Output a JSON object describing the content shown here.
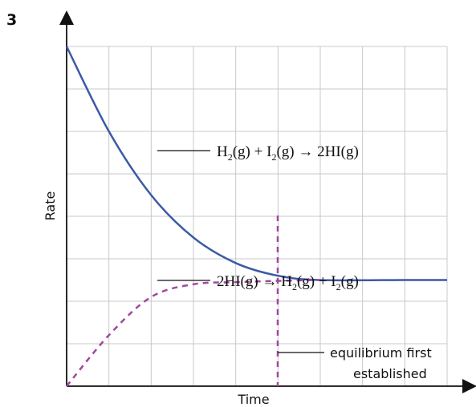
{
  "question_number": "3",
  "chart_data": {
    "type": "line",
    "xlabel": "Time",
    "ylabel": "Rate",
    "grid": true,
    "annotations": {
      "forward_reaction": "H2(g) + I2(g) → 2HI(g)",
      "reverse_reaction": "2HI(g) → H2(g) + I2(g)",
      "equilibrium_line1": "equilibrium first",
      "equilibrium_line2": "established"
    },
    "series": [
      {
        "name": "H2(g) + I2(g) → 2HI(g)",
        "style": "solid",
        "color": "#3b5aa6",
        "points": [
          [
            0,
            8
          ],
          [
            1,
            6
          ],
          [
            2,
            4.5
          ],
          [
            3,
            3.5
          ],
          [
            4,
            2.9
          ],
          [
            5,
            2.6
          ],
          [
            6,
            2.5
          ],
          [
            8,
            2.5
          ],
          [
            9,
            2.5
          ]
        ]
      },
      {
        "name": "2HI(g) → H2(g) + I2(g)",
        "style": "dashed",
        "color": "#a2479c",
        "points": [
          [
            0,
            0
          ],
          [
            1,
            1.2
          ],
          [
            2,
            2.1
          ],
          [
            3,
            2.4
          ],
          [
            4,
            2.45
          ],
          [
            5,
            2.48
          ],
          [
            6,
            2.5
          ]
        ]
      }
    ],
    "equilibrium_x": 5,
    "xlim": [
      0,
      9
    ],
    "ylim": [
      0,
      8
    ]
  }
}
